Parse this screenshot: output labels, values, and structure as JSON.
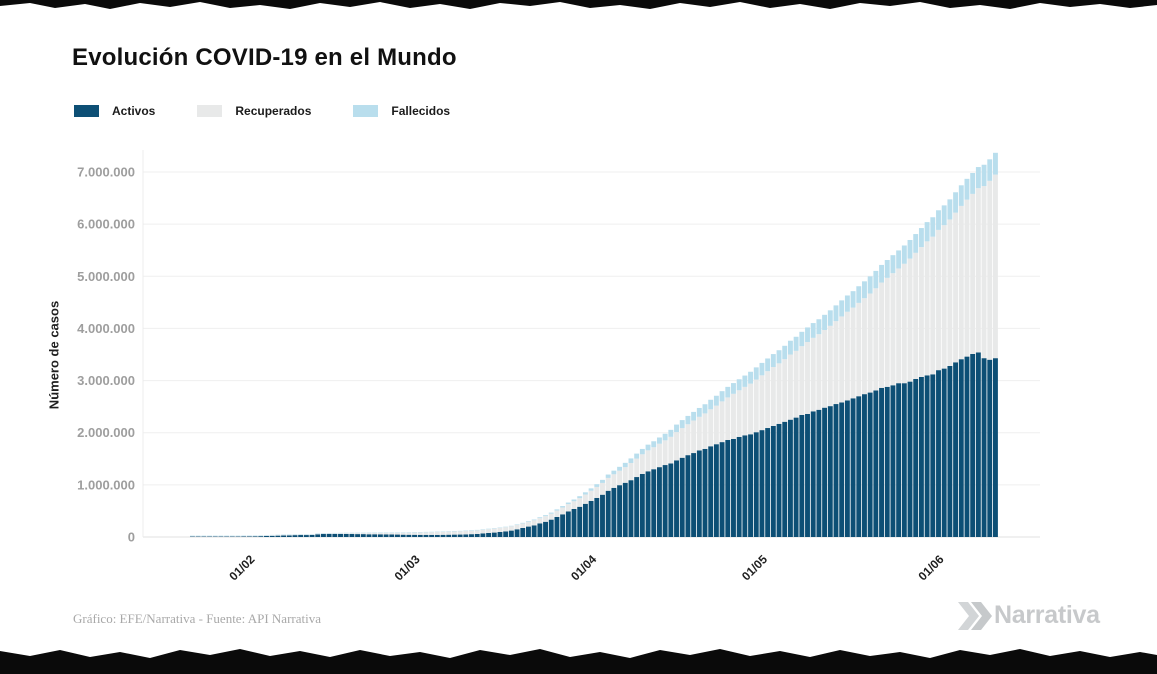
{
  "header": {
    "title": "Evolución COVID-19 en el Mundo"
  },
  "legend": {
    "items": [
      {
        "label": "Activos",
        "color": "#0d4f75"
      },
      {
        "label": "Recuperados",
        "color": "#e8e9e9"
      },
      {
        "label": "Fallecidos",
        "color": "#b9deed"
      }
    ]
  },
  "chart_data": {
    "type": "bar",
    "stacked": true,
    "title": "Evolución COVID-19 en el Mundo",
    "ylabel": "Número de casos",
    "xlabel": "",
    "ylim": [
      0,
      7420000
    ],
    "grid": "horizontal",
    "legend_position": "top-left",
    "y_ticks": [
      {
        "value": 0,
        "label": "0"
      },
      {
        "value": 1000000,
        "label": "1.000.000"
      },
      {
        "value": 2000000,
        "label": "2.000.000"
      },
      {
        "value": 3000000,
        "label": "3.000.000"
      },
      {
        "value": 4000000,
        "label": "4.000.000"
      },
      {
        "value": 5000000,
        "label": "5.000.000"
      },
      {
        "value": 6000000,
        "label": "6.000.000"
      },
      {
        "value": 7000000,
        "label": "7.000.000"
      }
    ],
    "x_start_date": "22/01/2020",
    "x_step_days": 1,
    "n_points": 142,
    "x_ticks": [
      {
        "index": 10,
        "label": "01/02"
      },
      {
        "index": 39,
        "label": "01/03"
      },
      {
        "index": 70,
        "label": "01/04"
      },
      {
        "index": 100,
        "label": "01/05"
      },
      {
        "index": 131,
        "label": "01/06"
      }
    ],
    "series": [
      {
        "name": "Activos",
        "color": "#0d4f75",
        "values": [
          510,
          594,
          873,
          1320,
          2000,
          2760,
          5360,
          5940,
          7890,
          9500,
          11500,
          13800,
          16400,
          19400,
          23000,
          26200,
          28900,
          31600,
          36100,
          37800,
          37400,
          38900,
          52600,
          57300,
          57900,
          58600,
          58800,
          58700,
          57400,
          55800,
          55700,
          52700,
          52700,
          51700,
          49800,
          48200,
          46700,
          44500,
          43300,
          42700,
          41600,
          41400,
          40900,
          40800,
          42400,
          44300,
          45800,
          47100,
          49900,
          54600,
          58900,
          69500,
          77700,
          85000,
          96300,
          108000,
          123000,
          148000,
          173000,
          200000,
          223000,
          261000,
          292000,
          333000,
          384000,
          435000,
          491000,
          537000,
          580000,
          637000,
          693000,
          750000,
          811000,
          887000,
          943000,
          994000,
          1040000,
          1090000,
          1150000,
          1210000,
          1260000,
          1300000,
          1340000,
          1380000,
          1410000,
          1470000,
          1520000,
          1570000,
          1610000,
          1660000,
          1690000,
          1740000,
          1780000,
          1820000,
          1860000,
          1880000,
          1920000,
          1950000,
          1970000,
          2010000,
          2050000,
          2090000,
          2130000,
          2170000,
          2210000,
          2250000,
          2290000,
          2340000,
          2360000,
          2410000,
          2440000,
          2480000,
          2510000,
          2550000,
          2580000,
          2620000,
          2660000,
          2700000,
          2740000,
          2770000,
          2810000,
          2860000,
          2880000,
          2910000,
          2950000,
          2950000,
          2980000,
          3030000,
          3070000,
          3100000,
          3120000,
          3200000,
          3230000,
          3280000,
          3350000,
          3410000,
          3460000,
          3510000,
          3540000,
          3430000,
          3400000,
          3430000
        ]
      },
      {
        "name": "Recuperados",
        "color": "#e8e9e9",
        "values": [
          28,
          31,
          36,
          39,
          49,
          61,
          107,
          126,
          143,
          187,
          273,
          472,
          623,
          852,
          1120,
          1490,
          2000,
          2600,
          3220,
          3920,
          4640,
          5150,
          6300,
          8060,
          9400,
          10900,
          12600,
          14400,
          16100,
          18200,
          18900,
          22900,
          23400,
          25200,
          27900,
          30400,
          33300,
          36700,
          39800,
          42700,
          45600,
          48200,
          50700,
          53800,
          55900,
          57900,
          60200,
          62500,
          64400,
          67000,
          68900,
          70300,
          72600,
          76000,
          78100,
          80800,
          83300,
          84900,
          87400,
          91700,
          97900,
          101000,
          108000,
          114000,
          122000,
          131000,
          139000,
          149000,
          165000,
          178000,
          193000,
          210000,
          226000,
          246000,
          260000,
          277000,
          300000,
          329000,
          354000,
          376000,
          402000,
          422000,
          449000,
          474000,
          511000,
          542000,
          568000,
          592000,
          624000,
          645000,
          680000,
          709000,
          739000,
          781000,
          817000,
          866000,
          894000,
          929000,
          972000,
          1010000,
          1050000,
          1090000,
          1130000,
          1160000,
          1200000,
          1250000,
          1280000,
          1320000,
          1380000,
          1410000,
          1450000,
          1490000,
          1540000,
          1590000,
          1650000,
          1700000,
          1740000,
          1790000,
          1840000,
          1900000,
          1960000,
          2020000,
          2090000,
          2150000,
          2200000,
          2290000,
          2360000,
          2420000,
          2490000,
          2570000,
          2640000,
          2690000,
          2750000,
          2810000,
          2870000,
          2940000,
          3010000,
          3070000,
          3150000,
          3300000,
          3430000,
          3520000
        ]
      },
      {
        "name": "Fallecidos",
        "color": "#b9deed",
        "values": [
          17,
          25,
          31,
          42,
          56,
          82,
          131,
          133,
          171,
          213,
          259,
          305,
          362,
          427,
          493,
          565,
          638,
          724,
          910,
          1010,
          1110,
          1120,
          1370,
          1520,
          1670,
          1770,
          1870,
          2010,
          2120,
          2250,
          2250,
          2460,
          2470,
          2630,
          2710,
          2770,
          2810,
          2870,
          2940,
          3000,
          3090,
          3160,
          3250,
          3350,
          3460,
          3560,
          3800,
          3990,
          4260,
          4610,
          4980,
          5400,
          5820,
          6440,
          7130,
          7910,
          8730,
          9870,
          11300,
          13000,
          14600,
          16500,
          18600,
          21200,
          24000,
          27200,
          30700,
          33900,
          37600,
          42100,
          46800,
          53000,
          58800,
          64600,
          69400,
          74700,
          81900,
          88300,
          95500,
          103000,
          109000,
          114000,
          119000,
          126000,
          134000,
          144000,
          154000,
          160000,
          165000,
          170000,
          176000,
          183000,
          190000,
          196000,
          202000,
          206000,
          211000,
          217000,
          227000,
          233000,
          239000,
          244000,
          248000,
          252000,
          257000,
          264000,
          270000,
          275000,
          279000,
          283000,
          286000,
          291000,
          297000,
          302000,
          308000,
          312000,
          315000,
          319000,
          323000,
          328000,
          333000,
          338000,
          342000,
          345000,
          346000,
          351000,
          356000,
          360000,
          365000,
          369000,
          372000,
          376000,
          380000,
          385000,
          391000,
          395000,
          399000,
          401000,
          405000,
          409000,
          413000,
          418000
        ]
      }
    ]
  },
  "footer": {
    "credit": "Gráfico: EFE/Narrativa - Fuente: API Narrativa",
    "brand": "Narrativa"
  }
}
